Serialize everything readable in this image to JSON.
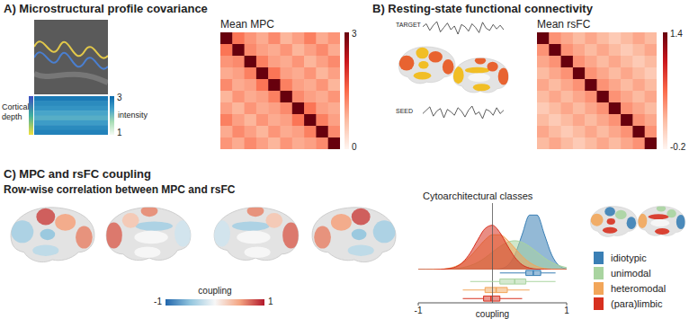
{
  "chart_data": [
    {
      "type": "heatmap",
      "title": "A) Microstructural profile covariance",
      "subtitle": "Mean MPC",
      "cells": [
        [
          3.0,
          1.4,
          1.1,
          0.9,
          1.2,
          0.8,
          1.0,
          1.3,
          0.9,
          1.1
        ],
        [
          1.4,
          3.0,
          1.2,
          1.0,
          0.9,
          1.1,
          0.8,
          1.0,
          1.2,
          0.9
        ],
        [
          1.1,
          1.2,
          3.0,
          1.3,
          1.0,
          0.9,
          1.1,
          0.8,
          1.0,
          1.2
        ],
        [
          0.9,
          1.0,
          1.3,
          3.0,
          1.4,
          1.0,
          0.9,
          1.1,
          0.8,
          1.0
        ],
        [
          1.2,
          0.9,
          1.0,
          1.4,
          3.0,
          1.3,
          1.0,
          0.9,
          1.1,
          0.8
        ],
        [
          0.8,
          1.1,
          0.9,
          1.0,
          1.3,
          3.0,
          1.2,
          1.0,
          0.9,
          1.1
        ],
        [
          1.0,
          0.8,
          1.1,
          0.9,
          1.0,
          1.2,
          3.0,
          1.4,
          1.0,
          0.9
        ],
        [
          1.3,
          1.0,
          0.8,
          1.1,
          0.9,
          1.0,
          1.4,
          3.0,
          1.3,
          1.0
        ],
        [
          0.9,
          1.2,
          1.0,
          0.8,
          1.1,
          0.9,
          1.0,
          1.3,
          3.0,
          1.2
        ],
        [
          1.1,
          0.9,
          1.2,
          1.0,
          0.8,
          1.1,
          0.9,
          1.0,
          1.2,
          3.0
        ]
      ],
      "colorbar_range": [
        0,
        3
      ],
      "colorbar_ticks": [
        0,
        3
      ],
      "inset": {
        "type": "profile",
        "y_label": "Cortical depth",
        "colorbar_label": "intensity",
        "colorbar_range": [
          1,
          3
        ],
        "colorbar_ticks": [
          1,
          3
        ],
        "values": [
          2.8,
          2.6,
          2.5,
          2.3,
          2.2,
          2.4,
          2.6,
          2.7
        ]
      }
    },
    {
      "type": "heatmap",
      "title": "B) Resting-state functional connectivity",
      "subtitle": "Mean rsFC",
      "cells": [
        [
          1.4,
          0.4,
          0.3,
          0.2,
          0.3,
          0.2,
          0.1,
          0.2,
          0.3,
          0.2
        ],
        [
          0.4,
          1.4,
          0.4,
          0.3,
          0.2,
          0.3,
          0.2,
          0.1,
          0.2,
          0.3
        ],
        [
          0.3,
          0.4,
          1.4,
          0.4,
          0.3,
          0.2,
          0.3,
          0.2,
          0.1,
          0.2
        ],
        [
          0.2,
          0.3,
          0.4,
          1.4,
          0.4,
          0.3,
          0.2,
          0.3,
          0.2,
          0.1
        ],
        [
          0.3,
          0.2,
          0.3,
          0.4,
          1.4,
          0.4,
          0.3,
          0.2,
          0.3,
          0.2
        ],
        [
          0.2,
          0.3,
          0.2,
          0.3,
          0.4,
          1.4,
          0.4,
          0.3,
          0.2,
          0.3
        ],
        [
          0.1,
          0.2,
          0.3,
          0.2,
          0.3,
          0.4,
          1.4,
          0.4,
          0.3,
          0.2
        ],
        [
          0.2,
          0.1,
          0.2,
          0.3,
          0.2,
          0.3,
          0.4,
          1.4,
          0.4,
          0.3
        ],
        [
          0.3,
          0.2,
          0.1,
          0.2,
          0.3,
          0.2,
          0.3,
          0.4,
          1.4,
          0.4
        ],
        [
          0.2,
          0.3,
          0.2,
          0.1,
          0.2,
          0.3,
          0.2,
          0.3,
          0.4,
          1.4
        ]
      ],
      "colorbar_range": [
        -0.2,
        1.4
      ],
      "colorbar_ticks": [
        -0.2,
        1.4
      ],
      "inset": {
        "type": "line",
        "series": [
          {
            "name": "TARGET",
            "values": [
              0.2,
              0.6,
              -0.3,
              0.4,
              0.9,
              -0.5,
              0.1,
              0.7,
              -0.2,
              0.3,
              -0.8,
              0.5,
              0.2,
              -0.4,
              0.6,
              0.1,
              -0.6,
              0.8,
              0.0,
              -0.3,
              0.5,
              -0.1,
              0.4,
              -0.2
            ]
          },
          {
            "name": "SEED",
            "values": [
              -0.1,
              0.3,
              0.7,
              -0.4,
              0.2,
              0.5,
              -0.6,
              0.4,
              0.1,
              -0.3,
              0.6,
              0.2,
              -0.5,
              0.3,
              0.8,
              -0.2,
              0.1,
              -0.7,
              0.4,
              0.2,
              -0.3,
              0.6,
              -0.1,
              0.3
            ]
          }
        ]
      }
    },
    {
      "type": "surface",
      "title": "C) MPC and rsFC coupling",
      "subtitle": "Row-wise correlation between MPC and rsFC",
      "colorbar_label": "coupling",
      "colorbar_range": [
        -1,
        1
      ],
      "colorbar_ticks": [
        -1,
        1
      ],
      "views": [
        [
          0.8,
          0.5,
          -0.4,
          -0.3,
          0.6,
          -0.5
        ],
        [
          0.6,
          -0.4,
          0.7,
          -0.2,
          0.3,
          0.0
        ],
        [
          0.6,
          -0.4,
          0.7,
          -0.2,
          0.3,
          0.0
        ],
        [
          0.8,
          0.5,
          -0.4,
          -0.3,
          0.6,
          -0.5
        ]
      ]
    },
    {
      "type": "density",
      "title": "Cytoarchitectural classes",
      "x_label": "coupling",
      "x": [
        -1,
        -0.9,
        -0.8,
        -0.7,
        -0.6,
        -0.5,
        -0.4,
        -0.3,
        -0.2,
        -0.1,
        0,
        0.1,
        0.2,
        0.3,
        0.4,
        0.5,
        0.6,
        0.7,
        0.8,
        0.9,
        1
      ],
      "xlim": [
        -1,
        1
      ],
      "xticks": [
        -1,
        1
      ],
      "ylim": [
        0,
        3
      ],
      "tick_labels": "x",
      "legend": "right",
      "series": [
        {
          "name": "idiotypic",
          "color": "#3a7fb5",
          "values": [
            0,
            0,
            0,
            0,
            0,
            0,
            0,
            0,
            0,
            0,
            0,
            0.03,
            0.17,
            0.65,
            1.58,
            2.46,
            2.46,
            1.58,
            0.65,
            0.17,
            0.03
          ],
          "box": [
            0.1,
            0.45,
            0.55,
            0.65,
            0.85
          ]
        },
        {
          "name": "unimodal",
          "color": "#a9d4a0",
          "values": [
            0,
            0,
            0,
            0.01,
            0.01,
            0.04,
            0.09,
            0.18,
            0.32,
            0.53,
            0.79,
            1.04,
            1.23,
            1.3,
            1.23,
            1.04,
            0.79,
            0.53,
            0.32,
            0.18,
            0.09
          ],
          "box": [
            -0.3,
            0.1,
            0.3,
            0.45,
            0.85
          ]
        },
        {
          "name": "heteromodal",
          "color": "#f2a65a",
          "values": [
            0,
            0,
            0.01,
            0.02,
            0.05,
            0.14,
            0.32,
            0.6,
            0.97,
            1.34,
            1.57,
            1.57,
            1.34,
            0.97,
            0.6,
            0.32,
            0.14,
            0.05,
            0.02,
            0.01,
            0
          ],
          "box": [
            -0.4,
            -0.1,
            0.05,
            0.2,
            0.5
          ]
        },
        {
          "name": "(para)limbic",
          "color": "#d7301f",
          "values": [
            0,
            0,
            0,
            0.01,
            0.04,
            0.11,
            0.33,
            0.75,
            1.33,
            1.85,
            2.0,
            1.67,
            1.09,
            0.56,
            0.22,
            0.07,
            0.02,
            0.01,
            0,
            0,
            0
          ],
          "box": [
            -0.4,
            -0.12,
            -0.02,
            0.1,
            0.4
          ]
        }
      ]
    }
  ]
}
